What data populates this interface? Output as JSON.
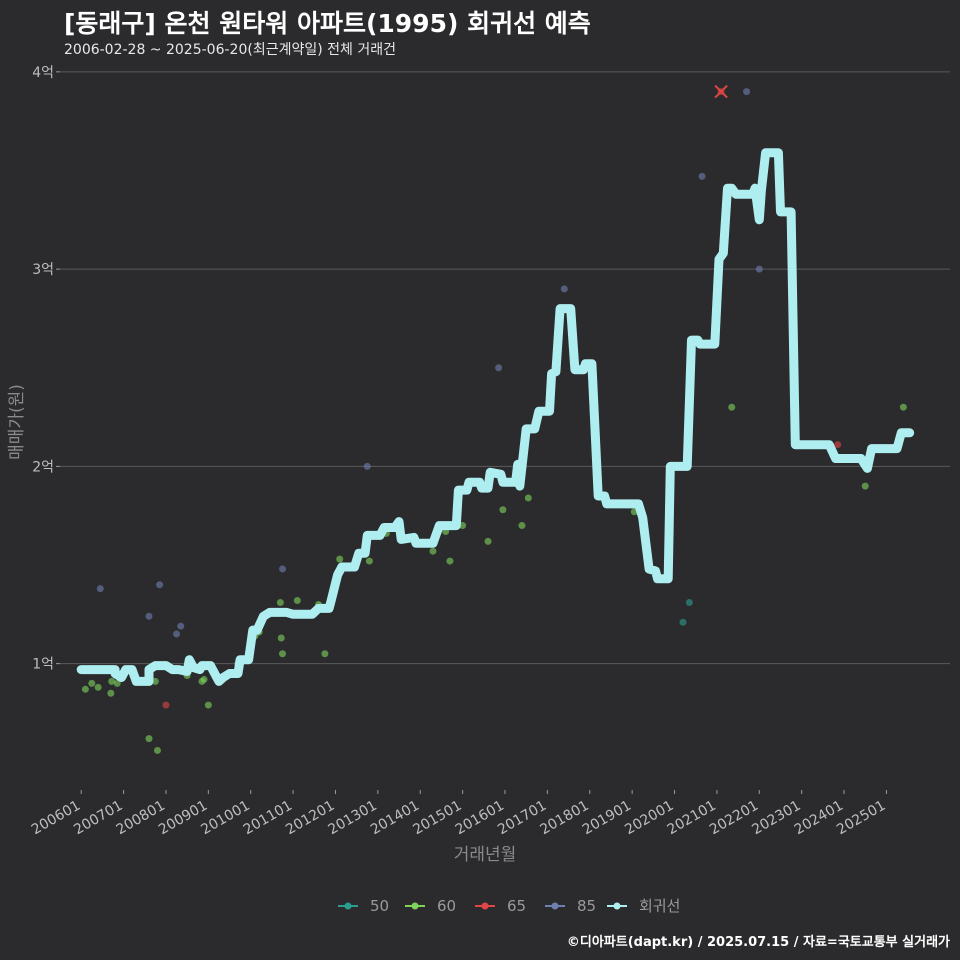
{
  "header": {
    "title": "[동래구] 온천 원타워 아파트(1995) 회귀선 예측",
    "subtitle": "2006-02-28 ~ 2025-06-20(최근계약일) 전체 거래건"
  },
  "footer": {
    "credit": "©디아파트(dapt.kr) / 2025.07.15 / 자료=국토교통부 실거래가"
  },
  "colors": {
    "background": "#2b2b2d",
    "grid": "#5a5a5a",
    "s50": "#2a9d8f",
    "s60": "#7fd35a",
    "s65": "#e04646",
    "s85": "#6f7fb0",
    "regression": "#aeeef0"
  },
  "chart_data": {
    "type": "scatter",
    "title": "[동래구] 온천 원타워 아파트(1995) 회귀선 예측",
    "xlabel": "거래년월",
    "ylabel": "매매가(원)",
    "xlim": [
      2005.5,
      2026.5
    ],
    "ylim": [
      0.4,
      4.05
    ],
    "x_ticks": [
      {
        "value": 2006.0,
        "label": "200601"
      },
      {
        "value": 2007.0,
        "label": "200701"
      },
      {
        "value": 2008.0,
        "label": "200801"
      },
      {
        "value": 2009.0,
        "label": "200901"
      },
      {
        "value": 2010.0,
        "label": "201001"
      },
      {
        "value": 2011.0,
        "label": "201101"
      },
      {
        "value": 2012.0,
        "label": "201201"
      },
      {
        "value": 2013.0,
        "label": "201301"
      },
      {
        "value": 2014.0,
        "label": "201401"
      },
      {
        "value": 2015.0,
        "label": "201501"
      },
      {
        "value": 2016.0,
        "label": "201601"
      },
      {
        "value": 2017.0,
        "label": "201701"
      },
      {
        "value": 2018.0,
        "label": "201801"
      },
      {
        "value": 2019.0,
        "label": "201901"
      },
      {
        "value": 2020.0,
        "label": "202001"
      },
      {
        "value": 2021.0,
        "label": "202101"
      },
      {
        "value": 2022.0,
        "label": "202201"
      },
      {
        "value": 2023.0,
        "label": "202301"
      },
      {
        "value": 2024.0,
        "label": "202401"
      },
      {
        "value": 2025.0,
        "label": "202501"
      }
    ],
    "y_ticks": [
      {
        "value": 1,
        "label": "1억"
      },
      {
        "value": 2,
        "label": "2억"
      },
      {
        "value": 3,
        "label": "3억"
      },
      {
        "value": 4,
        "label": "4억"
      }
    ],
    "legend": [
      {
        "key": "s50",
        "label": "50"
      },
      {
        "key": "s60",
        "label": "60"
      },
      {
        "key": "s65",
        "label": "65"
      },
      {
        "key": "s85",
        "label": "85"
      },
      {
        "key": "regression",
        "label": "회귀선"
      }
    ],
    "series": [
      {
        "name": "50",
        "key": "s50",
        "points": [
          [
            2020.2,
            1.21
          ],
          [
            2020.35,
            1.31
          ]
        ]
      },
      {
        "name": "60",
        "key": "s60",
        "points": [
          [
            2006.1,
            0.87
          ],
          [
            2006.25,
            0.9
          ],
          [
            2006.4,
            0.88
          ],
          [
            2006.7,
            0.85
          ],
          [
            2006.72,
            0.91
          ],
          [
            2006.85,
            0.9
          ],
          [
            2007.6,
            0.62
          ],
          [
            2007.75,
            0.91
          ],
          [
            2007.8,
            0.56
          ],
          [
            2008.5,
            0.94
          ],
          [
            2008.85,
            0.91
          ],
          [
            2008.9,
            0.92
          ],
          [
            2009.0,
            0.79
          ],
          [
            2009.7,
            1.0
          ],
          [
            2010.1,
            1.14
          ],
          [
            2010.2,
            1.16
          ],
          [
            2010.7,
            1.31
          ],
          [
            2010.72,
            1.13
          ],
          [
            2010.75,
            1.05
          ],
          [
            2011.1,
            1.32
          ],
          [
            2011.6,
            1.3
          ],
          [
            2011.75,
            1.05
          ],
          [
            2012.1,
            1.53
          ],
          [
            2012.8,
            1.52
          ],
          [
            2013.2,
            1.66
          ],
          [
            2013.6,
            1.64
          ],
          [
            2014.3,
            1.57
          ],
          [
            2014.6,
            1.67
          ],
          [
            2014.7,
            1.52
          ],
          [
            2015.0,
            1.7
          ],
          [
            2015.6,
            1.62
          ],
          [
            2015.95,
            1.78
          ],
          [
            2016.4,
            1.7
          ],
          [
            2016.55,
            1.84
          ],
          [
            2018.3,
            1.85
          ],
          [
            2018.9,
            1.81
          ],
          [
            2019.05,
            1.77
          ],
          [
            2021.35,
            2.3
          ],
          [
            2024.5,
            1.9
          ],
          [
            2025.4,
            2.3
          ]
        ]
      },
      {
        "name": "65",
        "key": "s65",
        "points": [
          [
            2008.0,
            0.79
          ],
          [
            2021.1,
            3.9
          ],
          [
            2023.85,
            2.11
          ]
        ]
      },
      {
        "name": "85",
        "key": "s85",
        "points": [
          [
            2006.45,
            1.38
          ],
          [
            2007.6,
            1.24
          ],
          [
            2007.85,
            1.4
          ],
          [
            2008.25,
            1.15
          ],
          [
            2008.35,
            1.19
          ],
          [
            2010.75,
            1.48
          ],
          [
            2012.75,
            2.0
          ],
          [
            2015.85,
            2.5
          ],
          [
            2017.4,
            2.9
          ],
          [
            2020.65,
            3.47
          ],
          [
            2021.7,
            3.9
          ],
          [
            2022.0,
            3.0
          ]
        ]
      }
    ],
    "regression_line": [
      [
        2006.0,
        0.97
      ],
      [
        2006.8,
        0.97
      ],
      [
        2006.8,
        0.95
      ],
      [
        2006.95,
        0.93
      ],
      [
        2007.05,
        0.97
      ],
      [
        2007.2,
        0.97
      ],
      [
        2007.3,
        0.91
      ],
      [
        2007.6,
        0.91
      ],
      [
        2007.6,
        0.97
      ],
      [
        2007.75,
        0.99
      ],
      [
        2008.0,
        0.99
      ],
      [
        2008.15,
        0.97
      ],
      [
        2008.3,
        0.97
      ],
      [
        2008.5,
        0.96
      ],
      [
        2008.55,
        1.02
      ],
      [
        2008.65,
        0.98
      ],
      [
        2008.8,
        0.97
      ],
      [
        2008.85,
        0.99
      ],
      [
        2009.05,
        0.99
      ],
      [
        2009.25,
        0.91
      ],
      [
        2009.35,
        0.93
      ],
      [
        2009.5,
        0.95
      ],
      [
        2009.7,
        0.95
      ],
      [
        2009.75,
        1.02
      ],
      [
        2009.95,
        1.02
      ],
      [
        2010.05,
        1.17
      ],
      [
        2010.15,
        1.17
      ],
      [
        2010.3,
        1.24
      ],
      [
        2010.45,
        1.26
      ],
      [
        2010.85,
        1.26
      ],
      [
        2011.0,
        1.25
      ],
      [
        2011.45,
        1.25
      ],
      [
        2011.6,
        1.28
      ],
      [
        2011.85,
        1.28
      ],
      [
        2011.9,
        1.32
      ],
      [
        2012.05,
        1.45
      ],
      [
        2012.15,
        1.49
      ],
      [
        2012.45,
        1.49
      ],
      [
        2012.55,
        1.56
      ],
      [
        2012.7,
        1.56
      ],
      [
        2012.75,
        1.65
      ],
      [
        2013.05,
        1.65
      ],
      [
        2013.15,
        1.69
      ],
      [
        2013.4,
        1.69
      ],
      [
        2013.5,
        1.72
      ],
      [
        2013.55,
        1.63
      ],
      [
        2013.85,
        1.64
      ],
      [
        2013.9,
        1.61
      ],
      [
        2014.3,
        1.61
      ],
      [
        2014.45,
        1.7
      ],
      [
        2014.85,
        1.7
      ],
      [
        2014.9,
        1.88
      ],
      [
        2015.1,
        1.88
      ],
      [
        2015.15,
        1.92
      ],
      [
        2015.4,
        1.92
      ],
      [
        2015.45,
        1.89
      ],
      [
        2015.6,
        1.89
      ],
      [
        2015.65,
        1.97
      ],
      [
        2015.9,
        1.96
      ],
      [
        2015.95,
        1.92
      ],
      [
        2016.25,
        1.92
      ],
      [
        2016.3,
        2.01
      ],
      [
        2016.35,
        1.9
      ],
      [
        2016.5,
        2.19
      ],
      [
        2016.7,
        2.19
      ],
      [
        2016.8,
        2.28
      ],
      [
        2017.05,
        2.28
      ],
      [
        2017.1,
        2.47
      ],
      [
        2017.2,
        2.48
      ],
      [
        2017.3,
        2.8
      ],
      [
        2017.55,
        2.8
      ],
      [
        2017.65,
        2.49
      ],
      [
        2017.85,
        2.49
      ],
      [
        2017.9,
        2.52
      ],
      [
        2018.05,
        2.52
      ],
      [
        2018.2,
        1.85
      ],
      [
        2018.35,
        1.85
      ],
      [
        2018.4,
        1.81
      ],
      [
        2019.15,
        1.81
      ],
      [
        2019.25,
        1.74
      ],
      [
        2019.4,
        1.48
      ],
      [
        2019.55,
        1.47
      ],
      [
        2019.6,
        1.43
      ],
      [
        2019.85,
        1.43
      ],
      [
        2019.9,
        2.0
      ],
      [
        2020.3,
        2.0
      ],
      [
        2020.4,
        2.64
      ],
      [
        2020.55,
        2.64
      ],
      [
        2020.6,
        2.62
      ],
      [
        2020.95,
        2.62
      ],
      [
        2021.05,
        3.05
      ],
      [
        2021.15,
        3.08
      ],
      [
        2021.25,
        3.41
      ],
      [
        2021.35,
        3.41
      ],
      [
        2021.45,
        3.38
      ],
      [
        2021.85,
        3.38
      ],
      [
        2021.9,
        3.41
      ],
      [
        2022.0,
        3.25
      ],
      [
        2022.05,
        3.4
      ],
      [
        2022.15,
        3.59
      ],
      [
        2022.45,
        3.59
      ],
      [
        2022.5,
        3.29
      ],
      [
        2022.75,
        3.29
      ],
      [
        2022.85,
        2.11
      ],
      [
        2023.65,
        2.11
      ],
      [
        2023.8,
        2.04
      ],
      [
        2024.0,
        2.04
      ],
      [
        2024.1,
        2.04
      ],
      [
        2024.4,
        2.04
      ],
      [
        2024.55,
        1.99
      ],
      [
        2024.65,
        2.09
      ],
      [
        2025.25,
        2.09
      ],
      [
        2025.35,
        2.17
      ],
      [
        2025.55,
        2.17
      ]
    ]
  }
}
